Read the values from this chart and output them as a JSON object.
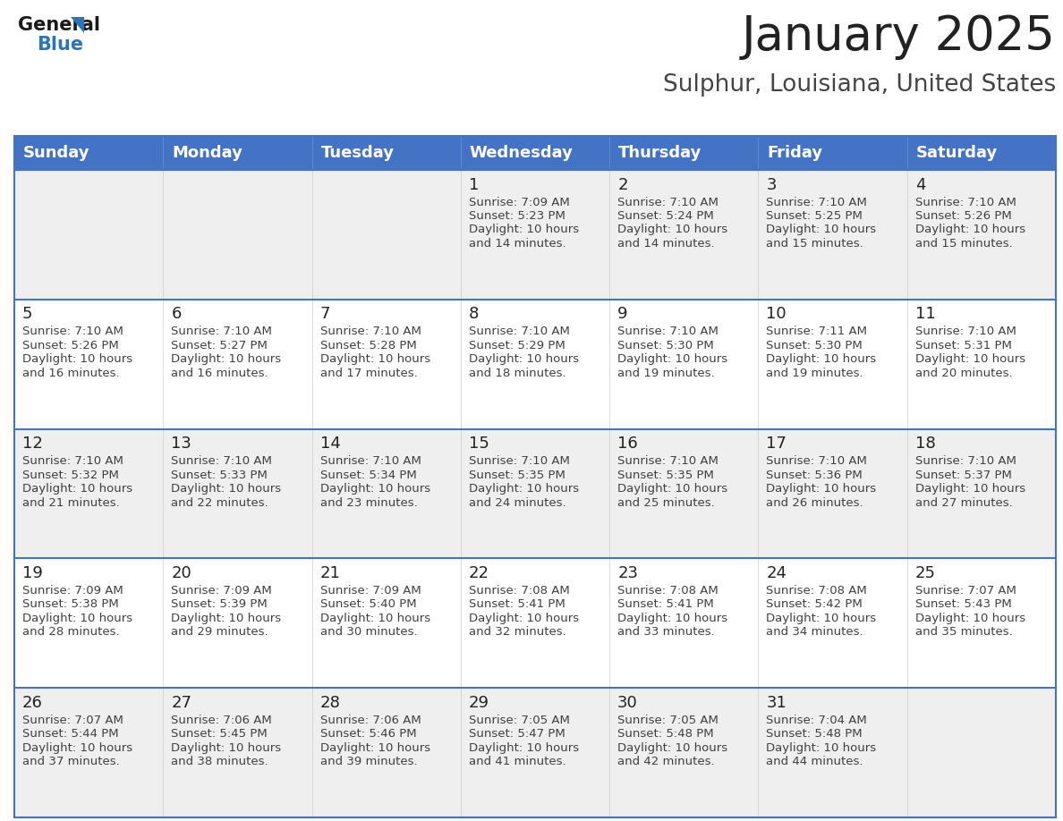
{
  "title": "January 2025",
  "subtitle": "Sulphur, Louisiana, United States",
  "days_of_week": [
    "Sunday",
    "Monday",
    "Tuesday",
    "Wednesday",
    "Thursday",
    "Friday",
    "Saturday"
  ],
  "header_bg": "#4472C4",
  "header_text_color": "#FFFFFF",
  "row_bg_light": "#EFEFEF",
  "row_bg_white": "#FFFFFF",
  "separator_color": "#4472C4",
  "text_color": "#404040",
  "day_number_color": "#222222",
  "title_color": "#222222",
  "subtitle_color": "#444444",
  "calendar_data": [
    {
      "day": 1,
      "col": 3,
      "row": 0,
      "sunrise": "7:09 AM",
      "sunset": "5:23 PM",
      "daylight": "10 hours and 14 minutes."
    },
    {
      "day": 2,
      "col": 4,
      "row": 0,
      "sunrise": "7:10 AM",
      "sunset": "5:24 PM",
      "daylight": "10 hours and 14 minutes."
    },
    {
      "day": 3,
      "col": 5,
      "row": 0,
      "sunrise": "7:10 AM",
      "sunset": "5:25 PM",
      "daylight": "10 hours and 15 minutes."
    },
    {
      "day": 4,
      "col": 6,
      "row": 0,
      "sunrise": "7:10 AM",
      "sunset": "5:26 PM",
      "daylight": "10 hours and 15 minutes."
    },
    {
      "day": 5,
      "col": 0,
      "row": 1,
      "sunrise": "7:10 AM",
      "sunset": "5:26 PM",
      "daylight": "10 hours and 16 minutes."
    },
    {
      "day": 6,
      "col": 1,
      "row": 1,
      "sunrise": "7:10 AM",
      "sunset": "5:27 PM",
      "daylight": "10 hours and 16 minutes."
    },
    {
      "day": 7,
      "col": 2,
      "row": 1,
      "sunrise": "7:10 AM",
      "sunset": "5:28 PM",
      "daylight": "10 hours and 17 minutes."
    },
    {
      "day": 8,
      "col": 3,
      "row": 1,
      "sunrise": "7:10 AM",
      "sunset": "5:29 PM",
      "daylight": "10 hours and 18 minutes."
    },
    {
      "day": 9,
      "col": 4,
      "row": 1,
      "sunrise": "7:10 AM",
      "sunset": "5:30 PM",
      "daylight": "10 hours and 19 minutes."
    },
    {
      "day": 10,
      "col": 5,
      "row": 1,
      "sunrise": "7:11 AM",
      "sunset": "5:30 PM",
      "daylight": "10 hours and 19 minutes."
    },
    {
      "day": 11,
      "col": 6,
      "row": 1,
      "sunrise": "7:10 AM",
      "sunset": "5:31 PM",
      "daylight": "10 hours and 20 minutes."
    },
    {
      "day": 12,
      "col": 0,
      "row": 2,
      "sunrise": "7:10 AM",
      "sunset": "5:32 PM",
      "daylight": "10 hours and 21 minutes."
    },
    {
      "day": 13,
      "col": 1,
      "row": 2,
      "sunrise": "7:10 AM",
      "sunset": "5:33 PM",
      "daylight": "10 hours and 22 minutes."
    },
    {
      "day": 14,
      "col": 2,
      "row": 2,
      "sunrise": "7:10 AM",
      "sunset": "5:34 PM",
      "daylight": "10 hours and 23 minutes."
    },
    {
      "day": 15,
      "col": 3,
      "row": 2,
      "sunrise": "7:10 AM",
      "sunset": "5:35 PM",
      "daylight": "10 hours and 24 minutes."
    },
    {
      "day": 16,
      "col": 4,
      "row": 2,
      "sunrise": "7:10 AM",
      "sunset": "5:35 PM",
      "daylight": "10 hours and 25 minutes."
    },
    {
      "day": 17,
      "col": 5,
      "row": 2,
      "sunrise": "7:10 AM",
      "sunset": "5:36 PM",
      "daylight": "10 hours and 26 minutes."
    },
    {
      "day": 18,
      "col": 6,
      "row": 2,
      "sunrise": "7:10 AM",
      "sunset": "5:37 PM",
      "daylight": "10 hours and 27 minutes."
    },
    {
      "day": 19,
      "col": 0,
      "row": 3,
      "sunrise": "7:09 AM",
      "sunset": "5:38 PM",
      "daylight": "10 hours and 28 minutes."
    },
    {
      "day": 20,
      "col": 1,
      "row": 3,
      "sunrise": "7:09 AM",
      "sunset": "5:39 PM",
      "daylight": "10 hours and 29 minutes."
    },
    {
      "day": 21,
      "col": 2,
      "row": 3,
      "sunrise": "7:09 AM",
      "sunset": "5:40 PM",
      "daylight": "10 hours and 30 minutes."
    },
    {
      "day": 22,
      "col": 3,
      "row": 3,
      "sunrise": "7:08 AM",
      "sunset": "5:41 PM",
      "daylight": "10 hours and 32 minutes."
    },
    {
      "day": 23,
      "col": 4,
      "row": 3,
      "sunrise": "7:08 AM",
      "sunset": "5:41 PM",
      "daylight": "10 hours and 33 minutes."
    },
    {
      "day": 24,
      "col": 5,
      "row": 3,
      "sunrise": "7:08 AM",
      "sunset": "5:42 PM",
      "daylight": "10 hours and 34 minutes."
    },
    {
      "day": 25,
      "col": 6,
      "row": 3,
      "sunrise": "7:07 AM",
      "sunset": "5:43 PM",
      "daylight": "10 hours and 35 minutes."
    },
    {
      "day": 26,
      "col": 0,
      "row": 4,
      "sunrise": "7:07 AM",
      "sunset": "5:44 PM",
      "daylight": "10 hours and 37 minutes."
    },
    {
      "day": 27,
      "col": 1,
      "row": 4,
      "sunrise": "7:06 AM",
      "sunset": "5:45 PM",
      "daylight": "10 hours and 38 minutes."
    },
    {
      "day": 28,
      "col": 2,
      "row": 4,
      "sunrise": "7:06 AM",
      "sunset": "5:46 PM",
      "daylight": "10 hours and 39 minutes."
    },
    {
      "day": 29,
      "col": 3,
      "row": 4,
      "sunrise": "7:05 AM",
      "sunset": "5:47 PM",
      "daylight": "10 hours and 41 minutes."
    },
    {
      "day": 30,
      "col": 4,
      "row": 4,
      "sunrise": "7:05 AM",
      "sunset": "5:48 PM",
      "daylight": "10 hours and 42 minutes."
    },
    {
      "day": 31,
      "col": 5,
      "row": 4,
      "sunrise": "7:04 AM",
      "sunset": "5:48 PM",
      "daylight": "10 hours and 44 minutes."
    }
  ],
  "logo_triangle_color": "#2E75B6",
  "title_fontsize": 38,
  "subtitle_fontsize": 19,
  "header_fontsize": 13,
  "day_number_fontsize": 13,
  "cell_text_fontsize": 9.5,
  "num_rows": 5,
  "num_cols": 7
}
